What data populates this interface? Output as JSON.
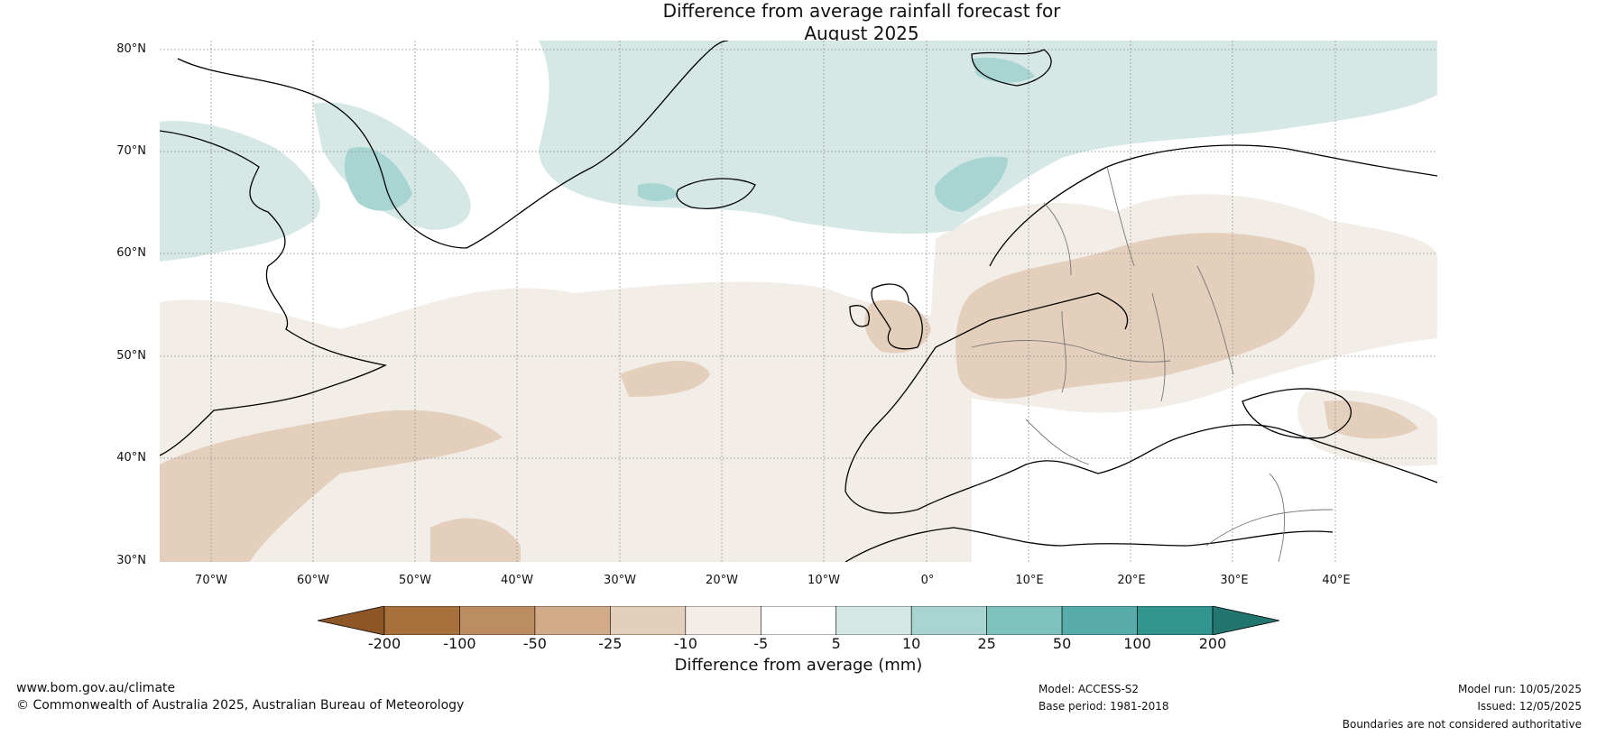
{
  "title": {
    "line1": "Difference from average rainfall forecast for",
    "line2": "August 2025"
  },
  "map": {
    "lat_labels": [
      "80°N",
      "70°N",
      "60°N",
      "50°N",
      "40°N",
      "30°N"
    ],
    "lon_labels": [
      "70°W",
      "60°W",
      "50°W",
      "40°W",
      "30°W",
      "20°W",
      "10°W",
      "0°",
      "10°E",
      "20°E",
      "30°E",
      "40°E"
    ],
    "extent": {
      "lon_min": -75,
      "lon_max": 50,
      "lat_min": 30,
      "lat_max": 81
    }
  },
  "colorbar": {
    "ticks": [
      "-200",
      "-100",
      "-50",
      "-25",
      "-10",
      "-5",
      "5",
      "10",
      "25",
      "50",
      "100",
      "200"
    ],
    "colors": [
      "#8e5526",
      "#a8703c",
      "#bd8d62",
      "#d1ab88",
      "#e4cfbd",
      "#f2ede7",
      "#ffffff",
      "#d5e8e6",
      "#a8d5d2",
      "#7fc1bc",
      "#57aba8",
      "#33958f",
      "#23766f"
    ],
    "label": "Difference from average (mm)"
  },
  "footer": {
    "website": "www.bom.gov.au/climate",
    "copyright": "© Commonwealth of Australia 2025, Australian Bureau of Meteorology",
    "model": "Model: ACCESS-S2",
    "base_period": "Base period: 1981-2018",
    "model_run": "Model run: 10/05/2025",
    "issued": "Issued: 12/05/2025",
    "disclaimer": "Boundaries are not considered authoritative"
  }
}
